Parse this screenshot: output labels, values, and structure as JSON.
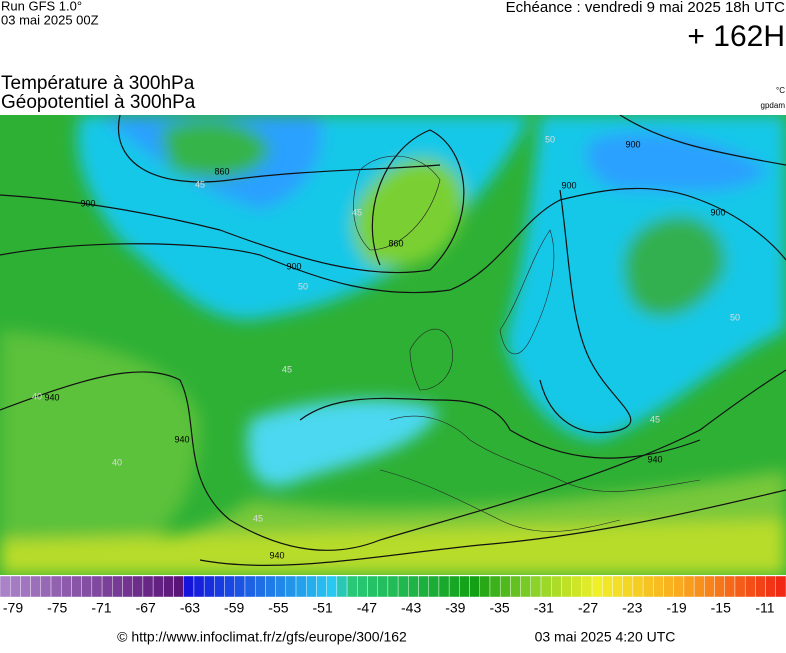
{
  "header": {
    "run": "Run GFS 1.0°",
    "date": "03 mai 2025 00Z",
    "echeance": "Echéance : vendredi 9 mai 2025 18h UTC",
    "lead": "+ 162H"
  },
  "titles": [
    "Température à 300hPa",
    "Géopotentiel à 300hPa"
  ],
  "units": [
    "°C",
    "gpdam"
  ],
  "contour_labels": [
    "860",
    "860",
    "900",
    "900",
    "900",
    "900",
    "900",
    "940",
    "940",
    "940",
    "940",
    "45",
    "45",
    "45",
    "45",
    "45",
    "50",
    "50",
    "50",
    "40",
    "40"
  ],
  "scale": {
    "labels": [
      -79,
      -75,
      -71,
      -67,
      -63,
      -59,
      -55,
      -51,
      -47,
      -43,
      -39,
      -35,
      -31,
      -27,
      -23,
      -19,
      -15,
      -11
    ]
  },
  "footer": {
    "url": "© http://www.infoclimat.fr/z/gfs/europe/300/162",
    "time": "03 mai 2025  4:20 UTC"
  }
}
